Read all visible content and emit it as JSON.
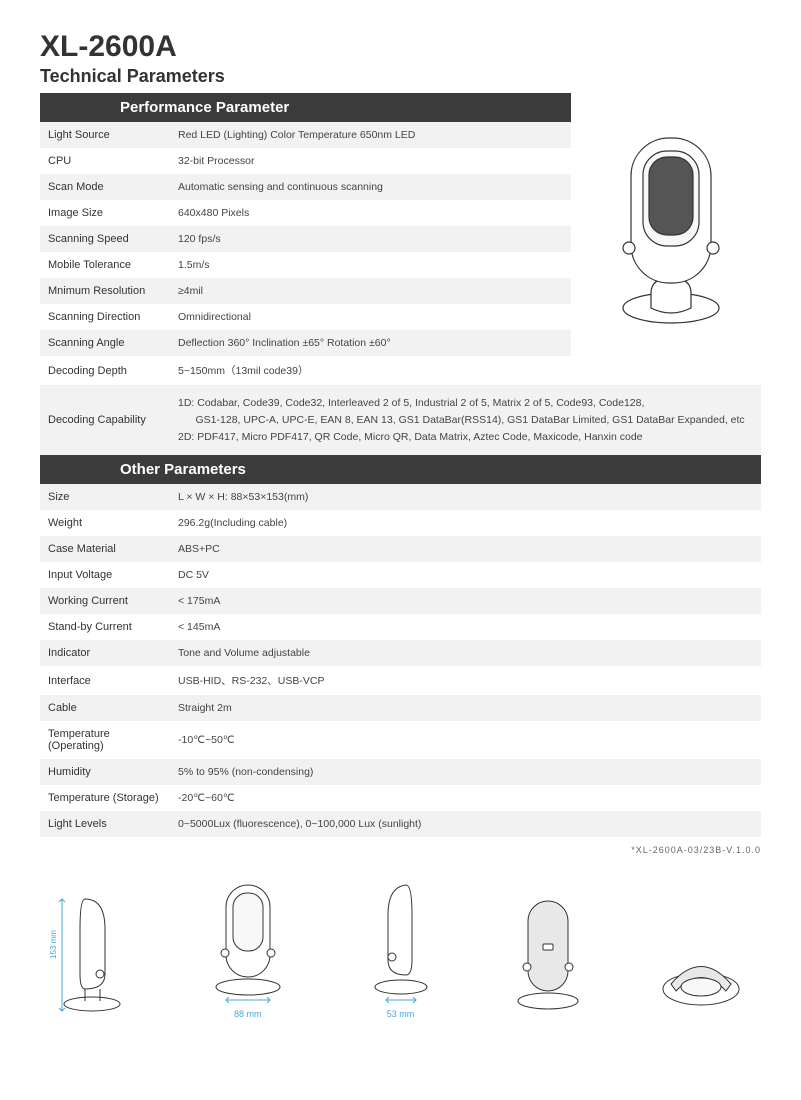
{
  "header": {
    "model": "XL-2600A",
    "subtitle": "Technical Parameters"
  },
  "sections": {
    "performance": {
      "title": "Performance Parameter",
      "rows": [
        {
          "label": "Light Source",
          "value": "Red LED (Lighting) Color Temperature 650nm LED"
        },
        {
          "label": "CPU",
          "value": "32-bit Processor"
        },
        {
          "label": "Scan Mode",
          "value": "Automatic sensing and continuous scanning"
        },
        {
          "label": "Image Size",
          "value": "640x480 Pixels"
        },
        {
          "label": "Scanning Speed",
          "value": "120 fps/s"
        },
        {
          "label": "Mobile Tolerance",
          "value": "1.5m/s"
        },
        {
          "label": "Mnimum Resolution",
          "value": "≥4mil"
        },
        {
          "label": "Scanning Direction",
          "value": "Omnidirectional"
        },
        {
          "label": "Scanning Angle",
          "value": "Deflection  360° Inclination  ±65° Rotation  ±60°"
        },
        {
          "label": "Decoding Depth",
          "value": "5~150mm（13mil code39）"
        }
      ],
      "decoding_label": "Decoding Capability",
      "decoding_lines": [
        "1D: Codabar, Code39, Code32, Interleaved 2 of 5, Industrial 2 of 5, Matrix 2 of 5, Code93, Code128,",
        "      GS1-128, UPC-A, UPC-E, EAN 8, EAN 13, GS1 DataBar(RSS14), GS1 DataBar Limited, GS1 DataBar Expanded, etc",
        "2D: PDF417, Micro PDF417, QR Code, Micro QR, Data Matrix, Aztec Code, Maxicode, Hanxin code"
      ]
    },
    "other": {
      "title": "Other Parameters",
      "rows": [
        {
          "label": "Size",
          "value": "L × W × H: 88×53×153(mm)"
        },
        {
          "label": "Weight",
          "value": "296.2g(Including cable)"
        },
        {
          "label": "Case Material",
          "value": "ABS+PC"
        },
        {
          "label": "Input Voltage",
          "value": "DC 5V"
        },
        {
          "label": "Working Current",
          "value": "< 175mA"
        },
        {
          "label": "Stand-by Current",
          "value": "< 145mA"
        },
        {
          "label": "Indicator",
          "value": "Tone and Volume adjustable"
        },
        {
          "label": "Interface",
          "value": "USB-HID、RS-232、USB-VCP"
        },
        {
          "label": "Cable",
          "value": "Straight 2m"
        },
        {
          "label": "Temperature (Operating)",
          "value": "-10℃~50℃"
        },
        {
          "label": "Humidity",
          "value": "5% to 95% (non-condensing)"
        },
        {
          "label": "Temperature (Storage)",
          "value": "-20℃~60℃"
        },
        {
          "label": "Light Levels",
          "value": "0~5000Lux (fluorescence), 0~100,000 Lux (sunlight)"
        }
      ]
    }
  },
  "footnote": "*XL-2600A-03/23B-V.1.0.0",
  "dimensions": {
    "height_label": "153 mm",
    "width_label": "88 mm",
    "depth_label": "53 mm",
    "label_color": "#4aa8d8"
  },
  "colors": {
    "section_header_bg": "#3b3b3b",
    "row_odd_bg": "#f2f2f2",
    "row_even_bg": "#ffffff"
  }
}
